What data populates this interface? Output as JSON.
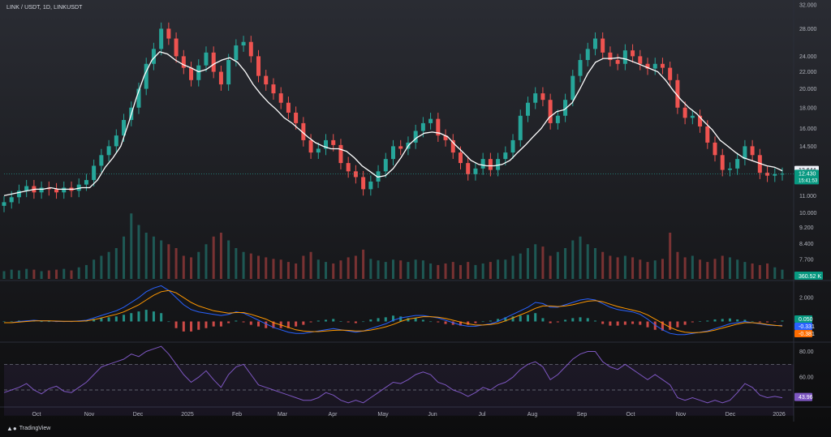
{
  "header": {
    "ticker_label": "LINK / USDT, 1D, LINKUSDT"
  },
  "footer": {
    "brand": "TradingView"
  },
  "chart_data": [
    {
      "type": "line",
      "panel": "price",
      "scale": "log",
      "ylim": [
        6.9,
        32.0
      ],
      "y_ticks": [
        "32.000",
        "28.000",
        "24.000",
        "22.000",
        "20.000",
        "18.000",
        "16.000",
        "14.500",
        "11.000",
        "10.000",
        "9.200",
        "8.400",
        "7.700"
      ],
      "x_ticks": [
        "Oct",
        "Nov",
        "Dec",
        "2025",
        "Feb",
        "Mar",
        "Apr",
        "May",
        "Jun",
        "Jul",
        "Aug",
        "Sep",
        "Oct",
        "Nov",
        "Dec",
        "2026"
      ],
      "series": [
        {
          "style": "candlesticks",
          "color_up": "#26a69a",
          "color_down": "#ef5350",
          "values": [
            10.6,
            10.9,
            11.3,
            11.6,
            11.2,
            11.5,
            11.4,
            11.2,
            11.5,
            11.3,
            11.7,
            12.0,
            13.0,
            13.8,
            14.5,
            15.4,
            16.8,
            18.0,
            20.0,
            23.0,
            25.0,
            28.0,
            26.5,
            24.0,
            22.5,
            21.0,
            22.8,
            24.5,
            22.0,
            20.5,
            23.5,
            25.5,
            26.0,
            24.0,
            21.5,
            20.5,
            19.5,
            18.5,
            17.5,
            16.5,
            15.0,
            14.0,
            14.3,
            15.0,
            14.6,
            13.2,
            12.6,
            12.2,
            11.4,
            11.9,
            12.6,
            13.5,
            14.5,
            14.3,
            14.8,
            15.8,
            16.5,
            16.9,
            15.4,
            15.0,
            14.0,
            13.2,
            12.4,
            12.8,
            13.5,
            12.7,
            13.5,
            14.0,
            15.0,
            17.2,
            18.5,
            19.5,
            18.8,
            16.5,
            17.2,
            18.8,
            21.5,
            23.5,
            25.0,
            26.5,
            24.5,
            23.5,
            23.0,
            24.8,
            24.0,
            23.0,
            22.4,
            23.0,
            22.5,
            21.0,
            18.0,
            17.0,
            17.2,
            16.2,
            14.8,
            13.8,
            12.7,
            12.8,
            13.5,
            14.5,
            13.8,
            12.5,
            12.3,
            12.4,
            12.43
          ]
        },
        {
          "name": "",
          "style": "moving-average",
          "color": "#ffffff",
          "values": [
            11.0,
            11.1,
            11.2,
            11.3,
            11.4,
            11.4,
            11.5,
            11.4,
            11.4,
            11.4,
            11.5,
            11.5,
            12.0,
            12.9,
            13.6,
            14.5,
            16.5,
            19.0,
            21.5,
            23.5,
            24.6,
            24.3,
            23.5,
            22.9,
            22.5,
            22.0,
            22.3,
            23.0,
            23.5,
            23.8,
            23.2,
            22.0,
            20.5,
            19.4,
            18.5,
            17.8,
            17.0,
            16.5,
            15.9,
            15.3,
            14.8,
            14.5,
            14.3,
            14.3,
            14.1,
            13.6,
            13.0,
            12.6,
            12.2,
            12.3,
            12.8,
            13.6,
            14.6,
            15.2,
            15.6,
            15.7,
            15.6,
            15.3,
            14.6,
            14.0,
            13.4,
            13.1,
            13.0,
            13.0,
            13.1,
            13.4,
            14.0,
            14.6,
            15.3,
            16.0,
            17.0,
            17.6,
            17.8,
            18.5,
            20.0,
            21.8,
            23.2,
            23.7,
            23.7,
            23.8,
            23.6,
            23.2,
            22.8,
            22.4,
            22.0,
            21.0,
            19.8,
            18.8,
            18.0,
            17.4,
            16.6,
            15.9,
            15.0,
            14.5,
            14.0,
            13.6,
            13.4,
            13.2,
            13.0,
            12.9,
            12.64
          ]
        }
      ],
      "price_labels": {
        "ma_value": "12.644",
        "last_price": "12.430",
        "countdown": "15:41:53"
      },
      "volume": {
        "label": "360.52 K",
        "values": [
          0.1,
          0.12,
          0.11,
          0.13,
          0.12,
          0.1,
          0.11,
          0.12,
          0.13,
          0.11,
          0.15,
          0.18,
          0.25,
          0.3,
          0.35,
          0.4,
          0.55,
          0.85,
          0.7,
          0.6,
          0.55,
          0.5,
          0.45,
          0.4,
          0.3,
          0.28,
          0.35,
          0.45,
          0.55,
          0.6,
          0.5,
          0.4,
          0.35,
          0.33,
          0.3,
          0.28,
          0.26,
          0.25,
          0.22,
          0.2,
          0.3,
          0.35,
          0.25,
          0.22,
          0.2,
          0.24,
          0.28,
          0.3,
          0.38,
          0.26,
          0.24,
          0.22,
          0.25,
          0.24,
          0.22,
          0.25,
          0.24,
          0.2,
          0.18,
          0.2,
          0.22,
          0.18,
          0.22,
          0.18,
          0.2,
          0.22,
          0.25,
          0.25,
          0.3,
          0.33,
          0.4,
          0.45,
          0.42,
          0.3,
          0.35,
          0.4,
          0.5,
          0.55,
          0.45,
          0.4,
          0.35,
          0.3,
          0.28,
          0.3,
          0.28,
          0.25,
          0.22,
          0.24,
          0.26,
          0.6,
          0.35,
          0.28,
          0.3,
          0.25,
          0.22,
          0.26,
          0.3,
          0.28,
          0.25,
          0.22,
          0.2,
          0.18,
          0.2,
          0.15,
          0.12
        ]
      }
    },
    {
      "type": "line",
      "panel": "macd",
      "y_ticks": [
        "2.000"
      ],
      "value_labels": {
        "histogram": "0.050",
        "macd": "-0.331",
        "signal": "-0.381"
      },
      "series": [
        {
          "style": "line",
          "color": "#2962ff",
          "values": [
            -0.1,
            -0.1,
            0,
            0.05,
            0.1,
            0.05,
            0.05,
            0,
            0,
            0,
            0.05,
            0.1,
            0.3,
            0.5,
            0.7,
            0.9,
            1.2,
            1.6,
            2.0,
            2.5,
            2.8,
            3.0,
            2.6,
            2.0,
            1.4,
            1.0,
            0.8,
            0.7,
            0.6,
            0.5,
            0.6,
            0.8,
            0.7,
            0.4,
            0.1,
            -0.2,
            -0.5,
            -0.7,
            -0.9,
            -1.0,
            -1.0,
            -0.9,
            -0.8,
            -0.7,
            -0.6,
            -0.7,
            -0.8,
            -0.9,
            -0.8,
            -0.6,
            -0.4,
            -0.2,
            0.1,
            0.3,
            0.4,
            0.5,
            0.5,
            0.4,
            0.3,
            0.1,
            -0.1,
            -0.3,
            -0.4,
            -0.4,
            -0.3,
            -0.2,
            0,
            0.3,
            0.6,
            0.9,
            1.2,
            1.6,
            1.5,
            1.2,
            1.2,
            1.4,
            1.6,
            1.8,
            1.9,
            1.8,
            1.5,
            1.2,
            1.0,
            0.9,
            0.8,
            0.6,
            0.2,
            -0.3,
            -0.7,
            -1.0,
            -1.1,
            -1.1,
            -1.0,
            -0.9,
            -0.8,
            -0.6,
            -0.4,
            -0.2,
            -0.1,
            0,
            -0.1,
            -0.2,
            -0.3,
            -0.35,
            -0.33
          ]
        },
        {
          "style": "line",
          "color": "#ff9800",
          "values": [
            -0.1,
            -0.1,
            -0.05,
            0,
            0.05,
            0.05,
            0.05,
            0.03,
            0.02,
            0.01,
            0.02,
            0.05,
            0.15,
            0.3,
            0.45,
            0.6,
            0.8,
            1.1,
            1.4,
            1.8,
            2.2,
            2.5,
            2.6,
            2.4,
            2.0,
            1.6,
            1.3,
            1.1,
            0.9,
            0.8,
            0.7,
            0.75,
            0.75,
            0.6,
            0.4,
            0.2,
            -0.1,
            -0.3,
            -0.5,
            -0.7,
            -0.8,
            -0.85,
            -0.85,
            -0.8,
            -0.75,
            -0.72,
            -0.75,
            -0.8,
            -0.8,
            -0.72,
            -0.6,
            -0.45,
            -0.25,
            0,
            0.2,
            0.3,
            0.4,
            0.4,
            0.35,
            0.25,
            0.1,
            -0.05,
            -0.2,
            -0.3,
            -0.3,
            -0.25,
            -0.15,
            0.05,
            0.3,
            0.55,
            0.8,
            1.1,
            1.3,
            1.3,
            1.25,
            1.3,
            1.4,
            1.55,
            1.7,
            1.75,
            1.65,
            1.45,
            1.25,
            1.1,
            0.95,
            0.8,
            0.55,
            0.2,
            -0.15,
            -0.5,
            -0.75,
            -0.9,
            -0.95,
            -0.92,
            -0.85,
            -0.72,
            -0.55,
            -0.38,
            -0.22,
            -0.1,
            -0.1,
            -0.15,
            -0.25,
            -0.32,
            -0.381
          ]
        }
      ]
    },
    {
      "type": "line",
      "panel": "rsi",
      "y_ticks": [
        "80.00",
        "60.00"
      ],
      "value_labels": {
        "rsi": "43.96"
      },
      "ylim": [
        38,
        86
      ],
      "bands": {
        "upper": 70,
        "middle": 50,
        "lower": 30
      },
      "series": [
        {
          "style": "line",
          "color": "#7e57c2",
          "values": [
            48,
            50,
            52,
            55,
            50,
            47,
            51,
            53,
            49,
            48,
            52,
            56,
            62,
            68,
            70,
            72,
            74,
            78,
            76,
            80,
            82,
            84,
            78,
            70,
            62,
            56,
            60,
            65,
            58,
            52,
            62,
            68,
            70,
            62,
            54,
            52,
            50,
            48,
            46,
            44,
            42,
            42,
            44,
            48,
            46,
            42,
            40,
            42,
            40,
            44,
            48,
            52,
            56,
            55,
            58,
            62,
            64,
            62,
            56,
            54,
            50,
            48,
            45,
            48,
            52,
            50,
            54,
            56,
            60,
            66,
            70,
            72,
            68,
            58,
            62,
            68,
            74,
            78,
            80,
            80,
            72,
            68,
            66,
            70,
            66,
            62,
            58,
            62,
            58,
            54,
            44,
            42,
            44,
            42,
            40,
            42,
            40,
            42,
            48,
            55,
            52,
            46,
            44,
            45,
            43.96
          ]
        }
      ]
    }
  ]
}
